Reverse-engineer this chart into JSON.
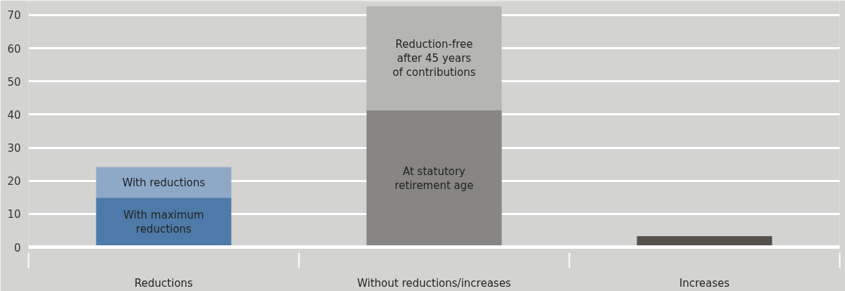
{
  "chart_data": {
    "type": "bar",
    "stacked": true,
    "categories": [
      "Reductions",
      "Without reductions/increases",
      "Increases"
    ],
    "series": [
      {
        "name": "With maximum\nreductions",
        "color": "#4d7aa8",
        "values": [
          14.9,
          null,
          null
        ]
      },
      {
        "name": "At statutory\nretirement age",
        "color": "#878684",
        "values": [
          null,
          41.3,
          null
        ]
      },
      {
        "color": "#54504c",
        "values": [
          null,
          null,
          3.3
        ]
      },
      {
        "name": "With reductions",
        "color": "#8ea8c8",
        "values": [
          9.2,
          null,
          null
        ]
      },
      {
        "name": "Reduction-free\nafter 45 years\nof contributions",
        "color": "#b5b5b3",
        "values": [
          null,
          31.3,
          null
        ]
      }
    ],
    "ylim": [
      0,
      74
    ],
    "yticks": [
      0,
      10,
      20,
      30,
      40,
      50,
      60,
      70
    ],
    "grid": "y"
  }
}
